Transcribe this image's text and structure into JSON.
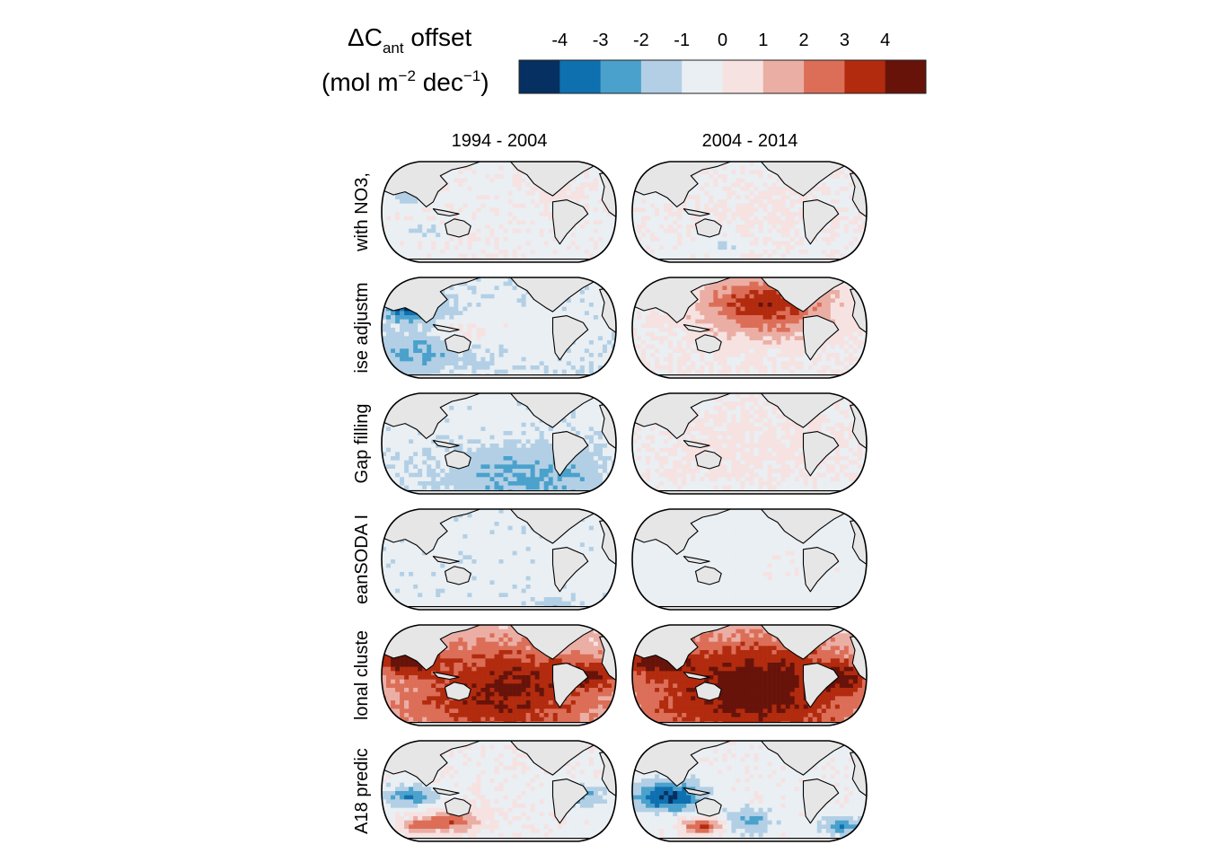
{
  "legend": {
    "title_main": "ΔC",
    "title_sub": "ant",
    "title_rest": " offset",
    "unit_open": "(mol m",
    "unit_exp1": "−2",
    "unit_mid": " dec",
    "unit_exp2": "−1",
    "unit_close": ")",
    "ticks": [
      "-4",
      "-3",
      "-2",
      "-1",
      "0",
      "1",
      "2",
      "3",
      "4"
    ],
    "colors": [
      "#053061",
      "#0f70b0",
      "#4aa1cc",
      "#b2cfe5",
      "#e9eff3",
      "#f6e2e1",
      "#ebaea4",
      "#dc6e58",
      "#b22b0e",
      "#67130a"
    ]
  },
  "columns": [
    "1994 - 2004",
    "2004 - 2014"
  ],
  "rows": [
    "with NO3,",
    "ise adjustm",
    "Gap filling",
    "eanSODA I",
    "lonal cluste",
    "A18 predic"
  ],
  "colors": {
    "land": "#e6e6e6",
    "coast": "#000000"
  },
  "chart_data": {
    "type": "heatmap",
    "description_level": "map panels of ΔCant offset per row and period",
    "color_scale": {
      "min": -4.5,
      "max": 4.5,
      "breaks": [
        -4,
        -3,
        -2,
        -1,
        0,
        1,
        2,
        3,
        4
      ]
    },
    "panels": [
      {
        "row": "with NO3,",
        "period": "1994 - 2004",
        "base": 0.25,
        "patches": [
          [
            0.12,
            0.35,
            -1.5,
            0.05
          ],
          [
            0.18,
            0.7,
            -0.8,
            0.06
          ],
          [
            0.75,
            0.3,
            0.6,
            0.1
          ]
        ]
      },
      {
        "row": "with NO3,",
        "period": "2004 - 2014",
        "base": 0.3,
        "patches": [
          [
            0.4,
            0.85,
            -1.2,
            0.05
          ],
          [
            0.6,
            0.5,
            0.5,
            0.15
          ]
        ]
      },
      {
        "row": "ise adjustm",
        "period": "1994 - 2004",
        "base": -0.3,
        "patches": [
          [
            0.12,
            0.3,
            -3.5,
            0.08
          ],
          [
            0.15,
            0.75,
            -1.2,
            0.15
          ],
          [
            0.35,
            0.55,
            1.0,
            0.08
          ],
          [
            0.65,
            0.5,
            0.4,
            0.2
          ]
        ]
      },
      {
        "row": "ise adjustm",
        "period": "2004 - 2014",
        "base": 0.4,
        "patches": [
          [
            0.55,
            0.22,
            2.8,
            0.18
          ],
          [
            0.6,
            0.4,
            1.5,
            0.2
          ],
          [
            0.3,
            0.6,
            0.2,
            0.15
          ]
        ]
      },
      {
        "row": "Gap filling",
        "period": "1994 - 2004",
        "base": -0.2,
        "patches": [
          [
            0.62,
            0.82,
            -1.6,
            0.25
          ],
          [
            0.5,
            0.4,
            0.3,
            0.25
          ]
        ]
      },
      {
        "row": "Gap filling",
        "period": "2004 - 2014",
        "base": 0.3,
        "patches": [
          [
            0.5,
            0.5,
            0.5,
            0.3
          ]
        ]
      },
      {
        "row": "eanSODA I",
        "period": "1994 - 2004",
        "base": -0.1,
        "patches": [
          [
            0.75,
            0.95,
            -1.5,
            0.05
          ]
        ]
      },
      {
        "row": "eanSODA I",
        "period": "2004 - 2014",
        "base": -0.05,
        "patches": [
          [
            0.7,
            0.6,
            0.3,
            0.15
          ]
        ]
      },
      {
        "row": "lonal cluste",
        "period": "1994 - 2004",
        "base": 1.5,
        "patches": [
          [
            0.1,
            0.35,
            3.2,
            0.1
          ],
          [
            0.5,
            0.75,
            2.8,
            0.3
          ],
          [
            0.55,
            0.4,
            1.2,
            0.2
          ],
          [
            0.9,
            0.5,
            2.2,
            0.1
          ]
        ]
      },
      {
        "row": "lonal cluste",
        "period": "2004 - 2014",
        "base": 1.4,
        "patches": [
          [
            0.1,
            0.35,
            3.0,
            0.1
          ],
          [
            0.5,
            0.72,
            3.5,
            0.35
          ],
          [
            0.55,
            0.35,
            1.0,
            0.2
          ],
          [
            0.9,
            0.5,
            2.0,
            0.1
          ]
        ]
      },
      {
        "row": "A18 predic",
        "period": "1994 - 2004",
        "base": 0.3,
        "patches": [
          [
            0.12,
            0.55,
            -2.5,
            0.08
          ],
          [
            0.3,
            0.8,
            3.0,
            0.08
          ],
          [
            0.85,
            0.55,
            -2.0,
            0.08
          ],
          [
            0.15,
            0.85,
            2.5,
            0.05
          ]
        ]
      },
      {
        "row": "A18 predic",
        "period": "2004 - 2014",
        "base": 0.2,
        "patches": [
          [
            0.15,
            0.55,
            -4.0,
            0.1
          ],
          [
            0.3,
            0.85,
            3.5,
            0.06
          ],
          [
            0.5,
            0.8,
            -2.0,
            0.08
          ],
          [
            0.9,
            0.85,
            -2.5,
            0.06
          ]
        ]
      }
    ]
  }
}
